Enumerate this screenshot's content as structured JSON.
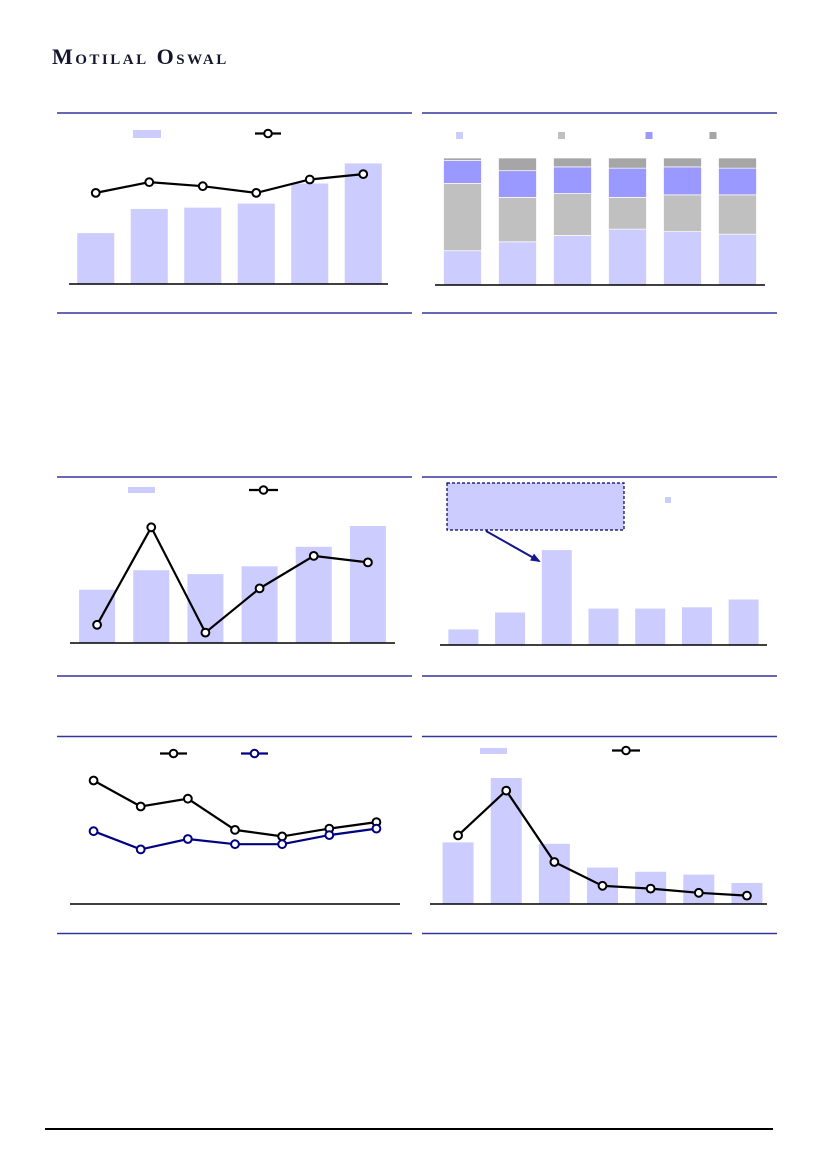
{
  "header": {
    "logo_text": "Motilal Oswal"
  },
  "colors": {
    "page_background": "#FFFFFF",
    "logo_text": "#15152E",
    "block_rule": "#35359E",
    "axis_line": "#000000",
    "bar_lavender": "#CCCCFF",
    "stack_gray": "#C0C0C0",
    "stack_periwinkle": "#9999FF",
    "stack_dark_gray": "#A6A6A6",
    "line_black": "#000000",
    "line_navy": "#000080",
    "callout_fill": "#CCCCFF",
    "callout_border": "#000066",
    "callout_arrow": "#16168C",
    "footer_line": "#000000"
  },
  "chart_data": [
    {
      "id": "c1",
      "position": "top-left",
      "type": "bar+line",
      "n": 6,
      "units": "percent-of-plot-height (no axis labels visible)",
      "ylim": [
        0,
        100
      ],
      "bars": {
        "color": "#CCCCFF",
        "values": [
          38,
          56,
          57,
          60,
          75,
          90
        ]
      },
      "lines": [
        {
          "color": "#000000",
          "values": [
            68,
            76,
            73,
            68,
            78,
            82
          ]
        }
      ],
      "legend": {
        "position": "top",
        "items": [
          {
            "kind": "bar-swatch",
            "color": "#CCCCFF"
          },
          {
            "kind": "line-marker",
            "color": "#000000"
          }
        ]
      }
    },
    {
      "id": "c2",
      "position": "top-right",
      "type": "stacked-bar-100pct",
      "n": 6,
      "units": "percent share of each bar (100% stacked)",
      "ylim": [
        0,
        100
      ],
      "stack_colors": [
        "#CCCCFF",
        "#C0C0C0",
        "#9999FF",
        "#A6A6A6"
      ],
      "stacks": [
        [
          27,
          53,
          18,
          2
        ],
        [
          34,
          35,
          21,
          10
        ],
        [
          39,
          33,
          21,
          7
        ],
        [
          44,
          25,
          23,
          8
        ],
        [
          42,
          29,
          22,
          7
        ],
        [
          40,
          31,
          21,
          8
        ]
      ],
      "legend": {
        "position": "top",
        "items": [
          {
            "kind": "square-swatch",
            "color": "#CCCCFF"
          },
          {
            "kind": "square-swatch",
            "color": "#C0C0C0"
          },
          {
            "kind": "square-swatch",
            "color": "#9999FF"
          },
          {
            "kind": "square-swatch",
            "color": "#A6A6A6"
          }
        ]
      }
    },
    {
      "id": "c3",
      "position": "middle-left",
      "type": "bar+line",
      "n": 6,
      "units": "percent-of-plot-height (no axis labels visible)",
      "ylim": [
        0,
        100
      ],
      "bars": {
        "color": "#CCCCFF",
        "values": [
          41,
          56,
          53,
          59,
          74,
          90
        ]
      },
      "lines": [
        {
          "color": "#000000",
          "values": [
            14,
            89,
            8,
            42,
            67,
            62
          ]
        }
      ],
      "legend": {
        "position": "top",
        "items": [
          {
            "kind": "bar-swatch",
            "color": "#CCCCFF"
          },
          {
            "kind": "line-marker",
            "color": "#000000"
          }
        ]
      }
    },
    {
      "id": "c4",
      "position": "middle-right",
      "type": "bar",
      "n": 7,
      "units": "percent-of-plot-height (no axis labels visible)",
      "ylim": [
        0,
        100
      ],
      "bars": {
        "color": "#CCCCFF",
        "values": [
          12,
          25,
          73,
          28,
          28,
          29,
          35
        ]
      },
      "callout": {
        "present": true,
        "style": "dashed-border-box",
        "fill": "#CCCCFF",
        "border": "#000066",
        "points_to_bar_index": 2
      },
      "legend": {
        "position": "top",
        "items": [
          {
            "kind": "square-swatch",
            "color": "#CCCCFF"
          }
        ]
      }
    },
    {
      "id": "c5",
      "position": "bottom-left",
      "type": "line",
      "n": 7,
      "units": "percent-of-plot-height (no axis labels visible)",
      "ylim": [
        0,
        100
      ],
      "lines": [
        {
          "color": "#000000",
          "values": [
            95,
            75,
            81,
            57,
            52,
            58,
            63
          ]
        },
        {
          "color": "#000080",
          "values": [
            56,
            42,
            50,
            46,
            46,
            53,
            58
          ]
        }
      ],
      "legend": {
        "position": "top",
        "items": [
          {
            "kind": "line-marker",
            "color": "#000000"
          },
          {
            "kind": "line-marker",
            "color": "#000080"
          }
        ]
      }
    },
    {
      "id": "c6",
      "position": "bottom-right",
      "type": "bar+line",
      "n": 7,
      "units": "percent-of-plot-height (no axis labels visible)",
      "ylim": [
        0,
        100
      ],
      "bars": {
        "color": "#CCCCFF",
        "values": [
          44,
          90,
          43,
          26,
          23,
          21,
          15
        ]
      },
      "lines": [
        {
          "color": "#000000",
          "values": [
            49,
            81,
            30,
            13,
            11,
            8,
            6
          ]
        }
      ],
      "legend": {
        "position": "top",
        "items": [
          {
            "kind": "bar-swatch",
            "color": "#CCCCFF"
          },
          {
            "kind": "line-marker",
            "color": "#000000"
          }
        ]
      }
    }
  ]
}
